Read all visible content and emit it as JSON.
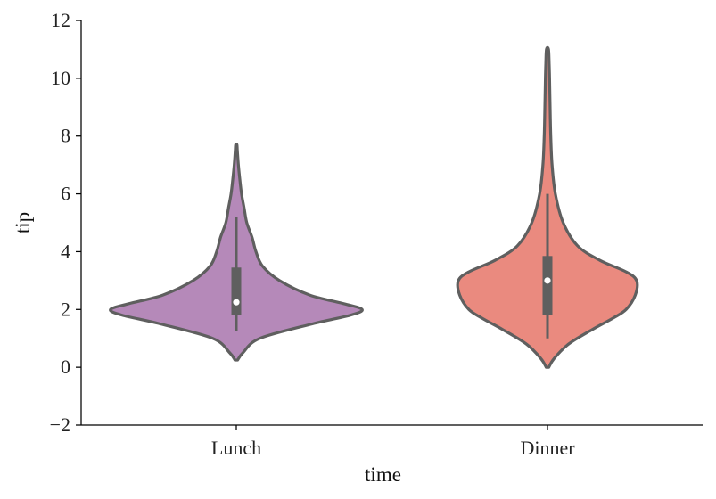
{
  "chart_data": {
    "type": "violin",
    "xlabel": "time",
    "ylabel": "tip",
    "ylim": [
      -2,
      12
    ],
    "yticks": [
      -2,
      0,
      2,
      4,
      6,
      8,
      10,
      12
    ],
    "ytick_labels": [
      "−2",
      "0",
      "2",
      "4",
      "6",
      "8",
      "10",
      "12"
    ],
    "categories": [
      "Lunch",
      "Dinner"
    ],
    "series": [
      {
        "category": "Lunch",
        "color": "#b589b9",
        "density": [
          [
            0.25,
            0.01
          ],
          [
            0.5,
            0.05
          ],
          [
            1.0,
            0.18
          ],
          [
            1.5,
            0.58
          ],
          [
            1.8,
            0.87
          ],
          [
            2.0,
            0.96
          ],
          [
            2.2,
            0.82
          ],
          [
            2.5,
            0.56
          ],
          [
            3.0,
            0.33
          ],
          [
            3.5,
            0.2
          ],
          [
            4.0,
            0.15
          ],
          [
            4.5,
            0.12
          ],
          [
            5.0,
            0.08
          ],
          [
            5.5,
            0.06
          ],
          [
            6.0,
            0.04
          ],
          [
            6.5,
            0.027
          ],
          [
            7.0,
            0.016
          ],
          [
            7.5,
            0.008
          ],
          [
            7.7,
            0.005
          ]
        ],
        "whisker": [
          1.25,
          5.2
        ],
        "quartiles": [
          1.8,
          3.45
        ],
        "median": 2.25
      },
      {
        "category": "Dinner",
        "color": "#ea8a7f",
        "density": [
          [
            0.0,
            0.01
          ],
          [
            0.3,
            0.05
          ],
          [
            0.8,
            0.16
          ],
          [
            1.3,
            0.34
          ],
          [
            1.7,
            0.5
          ],
          [
            2.0,
            0.6
          ],
          [
            2.5,
            0.67
          ],
          [
            3.0,
            0.68
          ],
          [
            3.3,
            0.6
          ],
          [
            3.7,
            0.4
          ],
          [
            4.2,
            0.23
          ],
          [
            5.0,
            0.12
          ],
          [
            6.0,
            0.06
          ],
          [
            7.0,
            0.035
          ],
          [
            8.0,
            0.025
          ],
          [
            9.0,
            0.02
          ],
          [
            10.0,
            0.016
          ],
          [
            10.5,
            0.013
          ],
          [
            11.0,
            0.008
          ]
        ],
        "whisker": [
          1.0,
          6.0
        ],
        "quartiles": [
          1.8,
          3.85
        ],
        "median": 3.0
      }
    ],
    "grid": false,
    "legend": "none"
  }
}
